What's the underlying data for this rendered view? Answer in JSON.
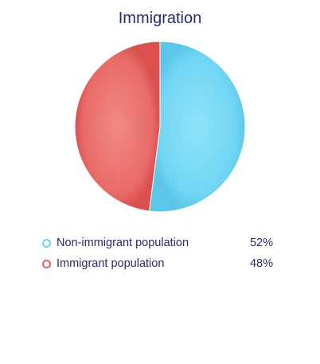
{
  "chart_data": {
    "type": "pie",
    "title": "Immigration",
    "series": [
      {
        "name": "Non-immigrant population",
        "value": 52,
        "label": "52%",
        "color": "#6dd3f1"
      },
      {
        "name": "Immigrant population",
        "value": 48,
        "label": "48%",
        "color": "#e8615f"
      }
    ],
    "legend_position": "bottom",
    "legend_marker": "ring"
  }
}
